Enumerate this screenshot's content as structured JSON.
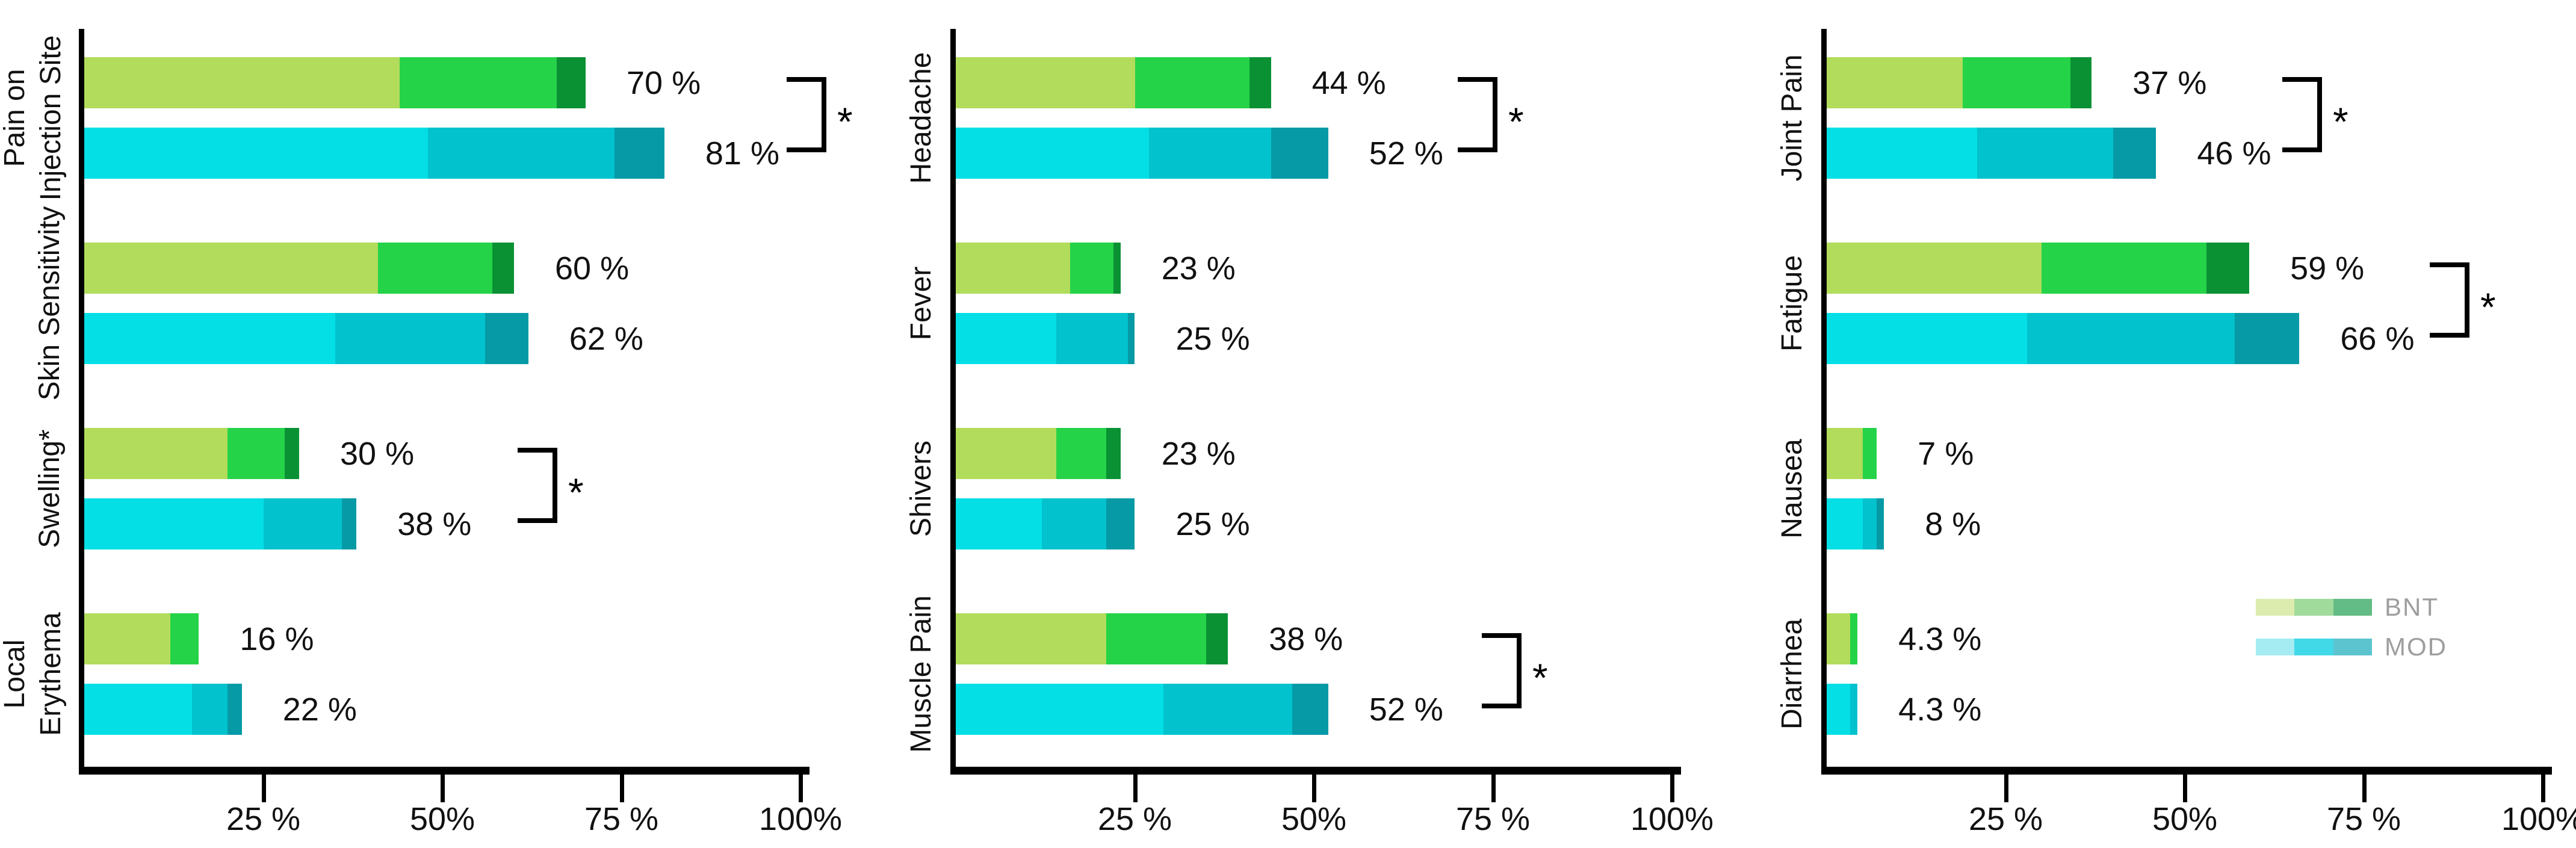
{
  "chart_data": {
    "type": "bar",
    "orientation": "horizontal",
    "unit": "%",
    "xlim": [
      0,
      100
    ],
    "x_ticks": [
      "25 %",
      "50%",
      "75 %",
      "100%"
    ],
    "x_tick_values": [
      25,
      50,
      75,
      100
    ],
    "grid": false,
    "significance_marker": "*",
    "legend_position": "bottom-right-of-third-panel",
    "legend": [
      {
        "name": "BNT"
      },
      {
        "name": "MOD"
      }
    ],
    "colors": {
      "bnt_segments": [
        "#b2dc5b",
        "#25d348",
        "#0a9134"
      ],
      "mod_segments": [
        "#04dfe6",
        "#02c2cd",
        "#059aa6"
      ],
      "legend_bnt_segments": [
        "#dcecae",
        "#a0db9b",
        "#63bb85"
      ],
      "legend_mod_segments": [
        "#a5ecf2",
        "#41d8e8",
        "#5cc4cf"
      ],
      "axis": "#000000",
      "legend_text": "#9e9e9e"
    },
    "panels": [
      {
        "categories": [
          {
            "label": "Pain on\nInjection Site",
            "bnt": {
              "total": 70,
              "label": "70 %",
              "segments": [
                44,
                22,
                4
              ]
            },
            "mod": {
              "total": 81,
              "label": "81 %",
              "segments": [
                48,
                26,
                7
              ]
            },
            "significant": true
          },
          {
            "label": "Skin Sensitivity",
            "bnt": {
              "total": 60,
              "label": "60 %",
              "segments": [
                41,
                16,
                3
              ]
            },
            "mod": {
              "total": 62,
              "label": "62 %",
              "segments": [
                35,
                21,
                6
              ]
            },
            "significant": false
          },
          {
            "label": "Swelling*",
            "bnt": {
              "total": 30,
              "label": "30 %",
              "segments": [
                20,
                8,
                2
              ]
            },
            "mod": {
              "total": 38,
              "label": "38 %",
              "segments": [
                25,
                11,
                2
              ]
            },
            "significant": true
          },
          {
            "label": "Local\nErythema",
            "bnt": {
              "total": 16,
              "label": "16 %",
              "segments": [
                12,
                4,
                0
              ]
            },
            "mod": {
              "total": 22,
              "label": "22 %",
              "segments": [
                15,
                5,
                2
              ]
            },
            "significant": false
          }
        ]
      },
      {
        "categories": [
          {
            "label": "Headache",
            "bnt": {
              "total": 44,
              "label": "44 %",
              "segments": [
                25,
                16,
                3
              ]
            },
            "mod": {
              "total": 52,
              "label": "52 %",
              "segments": [
                27,
                17,
                8
              ]
            },
            "significant": true
          },
          {
            "label": "Fever",
            "bnt": {
              "total": 23,
              "label": "23 %",
              "segments": [
                16,
                6,
                1
              ]
            },
            "mod": {
              "total": 25,
              "label": "25 %",
              "segments": [
                14,
                10,
                1
              ]
            },
            "significant": false
          },
          {
            "label": "Shivers",
            "bnt": {
              "total": 23,
              "label": "23 %",
              "segments": [
                14,
                7,
                2
              ]
            },
            "mod": {
              "total": 25,
              "label": "25 %",
              "segments": [
                12,
                9,
                4
              ]
            },
            "significant": false
          },
          {
            "label": "Muscle Pain",
            "bnt": {
              "total": 38,
              "label": "38 %",
              "segments": [
                21,
                14,
                3
              ]
            },
            "mod": {
              "total": 52,
              "label": "52 %",
              "segments": [
                29,
                18,
                5
              ]
            },
            "significant": true
          }
        ]
      },
      {
        "categories": [
          {
            "label": "Joint Pain",
            "bnt": {
              "total": 37,
              "label": "37 %",
              "segments": [
                19,
                15,
                3
              ]
            },
            "mod": {
              "total": 46,
              "label": "46 %",
              "segments": [
                21,
                19,
                6
              ]
            },
            "significant": true
          },
          {
            "label": "Fatigue",
            "bnt": {
              "total": 59,
              "label": "59 %",
              "segments": [
                30,
                23,
                6
              ]
            },
            "mod": {
              "total": 66,
              "label": "66 %",
              "segments": [
                28,
                29,
                9
              ]
            },
            "significant": true
          },
          {
            "label": "Nausea",
            "bnt": {
              "total": 7,
              "label": "7 %",
              "segments": [
                5,
                2,
                0
              ]
            },
            "mod": {
              "total": 8,
              "label": "8 %",
              "segments": [
                5,
                2,
                1
              ]
            },
            "significant": false
          },
          {
            "label": "Diarrhea",
            "bnt": {
              "total": 4.3,
              "label": "4.3 %",
              "segments": [
                3.3,
                1,
                0
              ]
            },
            "mod": {
              "total": 4.3,
              "label": "4.3 %",
              "segments": [
                3.3,
                1,
                0
              ]
            },
            "significant": false
          }
        ]
      }
    ]
  }
}
